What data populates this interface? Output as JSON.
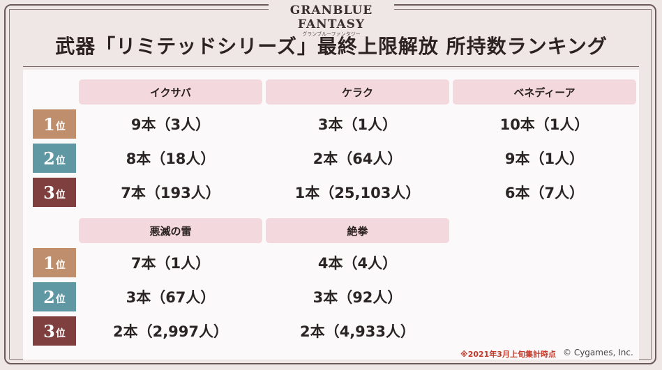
{
  "logo": {
    "main": "GRANBLUE FANTASY",
    "sub": "グランブルーファンタジー"
  },
  "title": "武器「リミテッドシリーズ」最終上限解放 所持数ランキング",
  "rank_labels": [
    {
      "num": "1",
      "suffix": "位"
    },
    {
      "num": "2",
      "suffix": "位"
    },
    {
      "num": "3",
      "suffix": "位"
    }
  ],
  "tables": [
    {
      "columns": [
        {
          "name": "イクサバ",
          "values": [
            "9本（3人）",
            "8本（18人）",
            "7本（193人）"
          ]
        },
        {
          "name": "ケラク",
          "values": [
            "3本（1人）",
            "2本（64人）",
            "1本（25,103人）"
          ]
        },
        {
          "name": "ベネディーア",
          "values": [
            "10本（1人）",
            "9本（1人）",
            "6本（7人）"
          ]
        }
      ]
    },
    {
      "columns": [
        {
          "name": "悪滅の雷",
          "values": [
            "7本（1人）",
            "3本（67人）",
            "2本（2,997人）"
          ]
        },
        {
          "name": "絶拳",
          "values": [
            "4本（4人）",
            "3本（92人）",
            "2本（4,933人）"
          ]
        }
      ]
    }
  ],
  "footer": {
    "note": "※2021年3月上旬集計時点",
    "copyright": "© Cygames, Inc."
  },
  "colors": {
    "rank1": "#bf8f6d",
    "rank2": "#5f97a3",
    "rank3": "#7f3f3e",
    "header": "#f3d9dd"
  }
}
